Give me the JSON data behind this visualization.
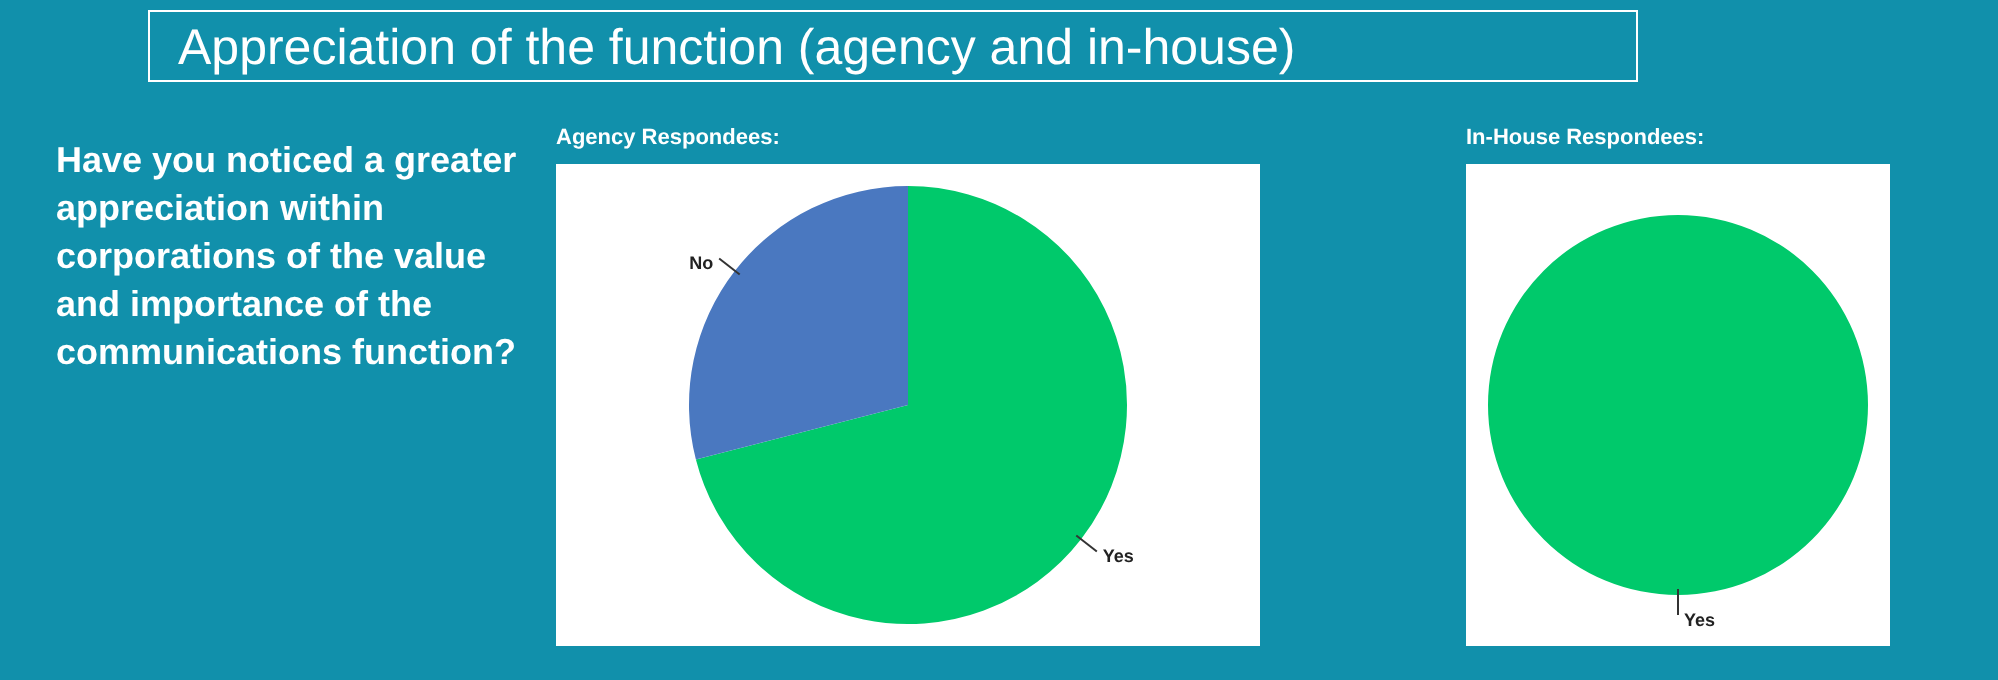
{
  "chart_data": [
    {
      "type": "other",
      "title": "Appreciation of the function (agency and in-house)",
      "annotations": [
        "Have you noticed a greater appreciation within corporations of the value and importance of the communications function?"
      ]
    },
    {
      "type": "pie",
      "title": "Agency Respondees:",
      "categories": [
        "Yes",
        "No"
      ],
      "values": [
        71,
        29
      ],
      "colors": [
        "#00c96b",
        "#4a78c0"
      ]
    },
    {
      "type": "pie",
      "title": "In-House Respondees:",
      "categories": [
        "Yes"
      ],
      "values": [
        100
      ],
      "colors": [
        "#00c96b"
      ]
    }
  ]
}
